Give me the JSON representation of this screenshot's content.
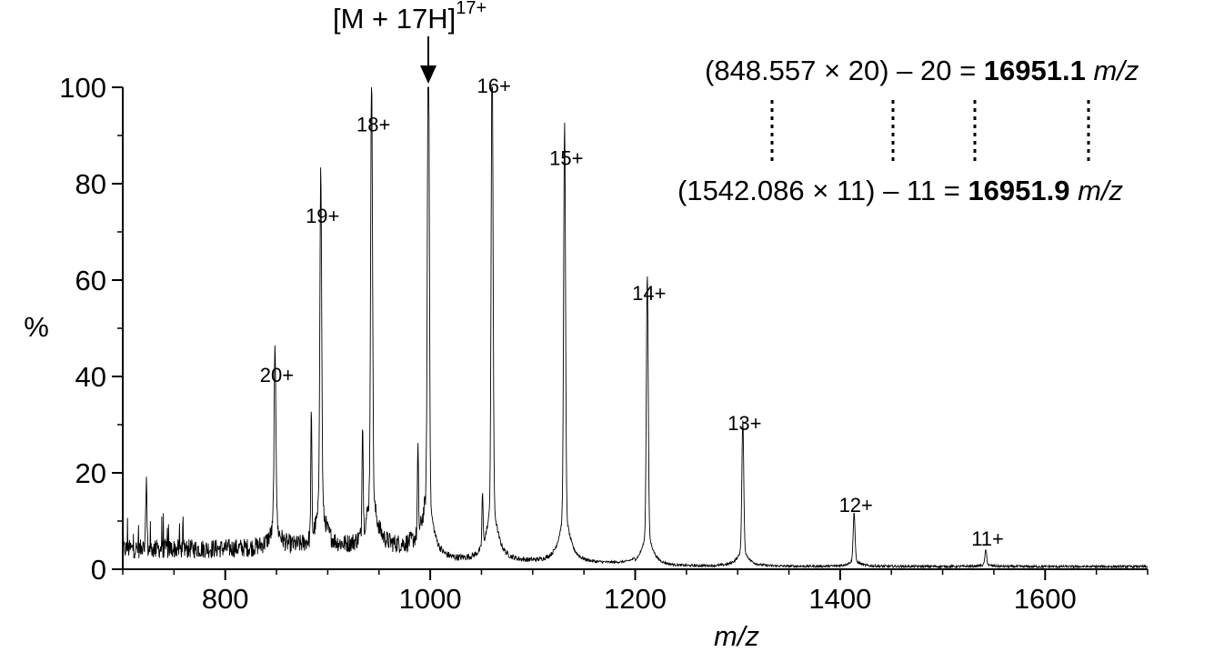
{
  "chart_data": {
    "type": "line",
    "xlabel": "m/z",
    "ylabel": "%",
    "xlim": [
      700,
      1700
    ],
    "ylim": [
      0,
      100
    ],
    "x_ticks": [
      "800",
      "1000",
      "1200",
      "1400",
      "1600"
    ],
    "y_ticks": [
      "0",
      "20",
      "40",
      "60",
      "80",
      "100"
    ],
    "grid": false,
    "legend": "none",
    "line_color": "#000000",
    "series": [
      {
        "peaks": [
          {
            "label": "20+",
            "x": 848.6,
            "y": 37
          },
          {
            "label": "19+",
            "x": 893.2,
            "y": 70
          },
          {
            "label": "18+",
            "x": 942.8,
            "y": 89
          },
          {
            "label": "17+",
            "x": 998.2,
            "y": 100
          },
          {
            "label": "16+",
            "x": 1060.4,
            "y": 97
          },
          {
            "label": "15+",
            "x": 1131.1,
            "y": 82
          },
          {
            "label": "14+",
            "x": 1211.8,
            "y": 54
          },
          {
            "label": "13+",
            "x": 1305.0,
            "y": 27
          },
          {
            "label": "12+",
            "x": 1413.6,
            "y": 10
          },
          {
            "label": "11+",
            "x": 1542.1,
            "y": 3
          }
        ],
        "minor_peaks": [
          {
            "x": 723,
            "y": 15
          },
          {
            "x": 884,
            "y": 25
          },
          {
            "x": 934,
            "y": 24
          },
          {
            "x": 988,
            "y": 17
          },
          {
            "x": 1051,
            "y": 11
          }
        ]
      }
    ],
    "annotations": {
      "top_ion": {
        "prefix": "[M + 17H]",
        "superscript": "17+"
      },
      "equation_1": {
        "text": "(848.557 × 20) – 20 = ",
        "result": "16951.1",
        "unit": "m/z"
      },
      "equation_2": {
        "text": "(1542.086  × 11) – 11 = ",
        "result": "16951.9",
        "unit": "m/z"
      }
    }
  }
}
